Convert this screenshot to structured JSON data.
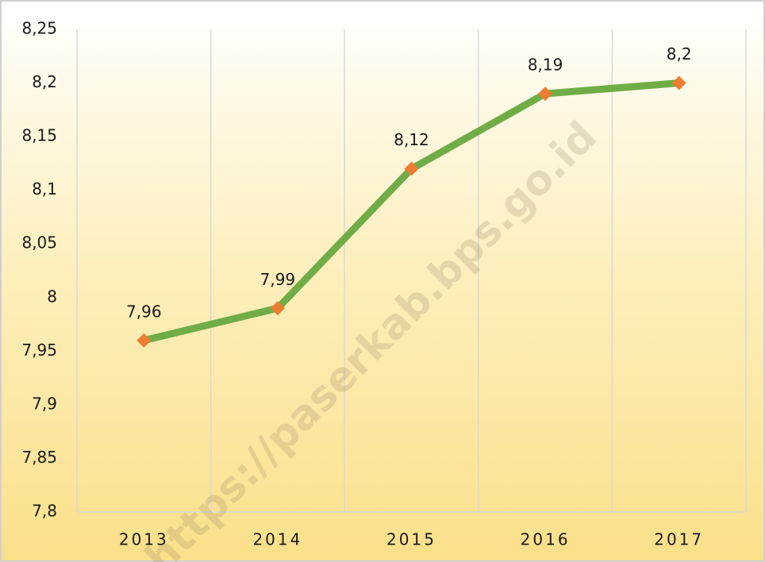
{
  "chart_data": {
    "type": "line",
    "categories": [
      "2013",
      "2014",
      "2015",
      "2016",
      "2017"
    ],
    "series": [
      {
        "name": null,
        "color": "#70ad47",
        "marker_color": "#ed7d31",
        "values": [
          7.96,
          7.99,
          8.12,
          8.19,
          8.2
        ],
        "value_labels": [
          "7,96",
          "7,99",
          "8,12",
          "8,19",
          "8,2"
        ]
      }
    ],
    "ylim": [
      7.8,
      8.25
    ],
    "yticks": [
      {
        "value": 7.8,
        "label": "7,8"
      },
      {
        "value": 7.85,
        "label": "7,85"
      },
      {
        "value": 7.9,
        "label": "7,9"
      },
      {
        "value": 7.95,
        "label": "7,95"
      },
      8,
      {
        "value": 8.05,
        "label": "8,05"
      },
      {
        "value": 8.1,
        "label": "8,1"
      },
      {
        "value": 8.15,
        "label": "8,15"
      },
      {
        "value": 8.2,
        "label": "8,2"
      },
      {
        "value": 8.25,
        "label": "8,25"
      }
    ],
    "grid": false,
    "x_grid": true,
    "watermark": "https://paserkab.bps.go.id"
  }
}
